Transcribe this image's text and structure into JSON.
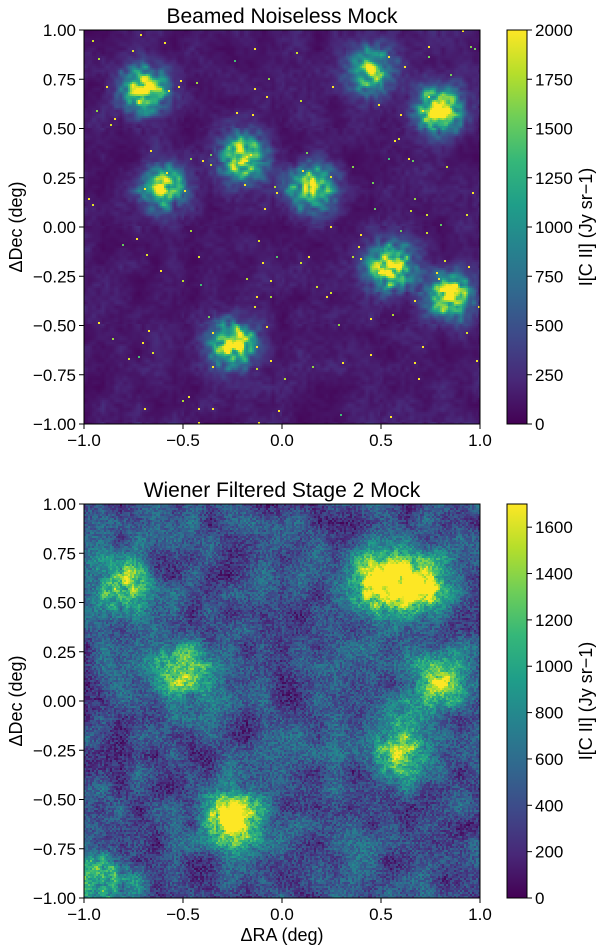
{
  "figure": {
    "colormap": "viridis",
    "colormap_stops": [
      "#440154",
      "#482878",
      "#3e4989",
      "#31688e",
      "#26828e",
      "#1f9e89",
      "#35b779",
      "#6ece58",
      "#b5de2b",
      "#fde725"
    ]
  },
  "chart_data": [
    {
      "type": "heatmap",
      "title": "Beamed Noiseless Mock",
      "xlabel": "",
      "ylabel": "ΔDec (deg)",
      "xlim": [
        -1.0,
        1.0
      ],
      "ylim": [
        -1.0,
        1.0
      ],
      "xticks": [
        "−1.0",
        "−0.5",
        "0.0",
        "0.5",
        "1.0"
      ],
      "yticks": [
        "1.00",
        "0.75",
        "0.50",
        "0.25",
        "0.00",
        "−0.25",
        "−0.50",
        "−0.75",
        "−1.00"
      ],
      "colorbar": {
        "label": "I[C II] (Jy sr−1)",
        "range": [
          0,
          2000
        ],
        "ticks": [
          "2000",
          "1750",
          "1500",
          "1250",
          "1000",
          "750",
          "500",
          "250",
          "0"
        ]
      },
      "grid": false,
      "background_level": 150,
      "hotspots": [
        {
          "ra": 0.55,
          "dec": -0.2,
          "level": 2000
        },
        {
          "ra": -0.25,
          "dec": -0.6,
          "level": 2000
        },
        {
          "ra": 0.8,
          "dec": 0.6,
          "level": 1900
        },
        {
          "ra": -0.7,
          "dec": 0.7,
          "level": 1900
        },
        {
          "ra": -0.2,
          "dec": 0.35,
          "level": 1800
        },
        {
          "ra": 0.85,
          "dec": -0.35,
          "level": 1700
        },
        {
          "ra": 0.15,
          "dec": 0.2,
          "level": 1600
        },
        {
          "ra": -0.6,
          "dec": 0.2,
          "level": 1500
        },
        {
          "ra": 0.45,
          "dec": 0.8,
          "level": 1500
        }
      ]
    },
    {
      "type": "heatmap",
      "title": "Wiener Filtered Stage 2 Mock",
      "xlabel": "ΔRA (deg)",
      "ylabel": "ΔDec (deg)",
      "xlim": [
        -1.0,
        1.0
      ],
      "ylim": [
        -1.0,
        1.0
      ],
      "xticks": [
        "−1.0",
        "−0.5",
        "0.0",
        "0.5",
        "1.0"
      ],
      "yticks": [
        "1.00",
        "0.75",
        "0.50",
        "0.25",
        "0.00",
        "−0.25",
        "−0.50",
        "−0.75",
        "−1.00"
      ],
      "colorbar": {
        "label": "I[C II] (Jy sr−1)",
        "range": [
          0,
          1700
        ],
        "ticks": [
          "1600",
          "1400",
          "1200",
          "1000",
          "800",
          "600",
          "400",
          "200",
          "0"
        ]
      },
      "grid": false,
      "background_level": 450,
      "hotspots": [
        {
          "ra": 0.5,
          "dec": 0.6,
          "level": 1650
        },
        {
          "ra": -0.25,
          "dec": -0.6,
          "level": 1500
        },
        {
          "ra": 0.7,
          "dec": 0.6,
          "level": 1300
        },
        {
          "ra": -0.5,
          "dec": 0.15,
          "level": 1100
        },
        {
          "ra": 0.6,
          "dec": -0.25,
          "level": 1000
        },
        {
          "ra": -0.8,
          "dec": 0.6,
          "level": 950
        },
        {
          "ra": 0.8,
          "dec": 0.1,
          "level": 1000
        },
        {
          "ra": -0.9,
          "dec": -0.9,
          "level": 850
        }
      ]
    }
  ]
}
